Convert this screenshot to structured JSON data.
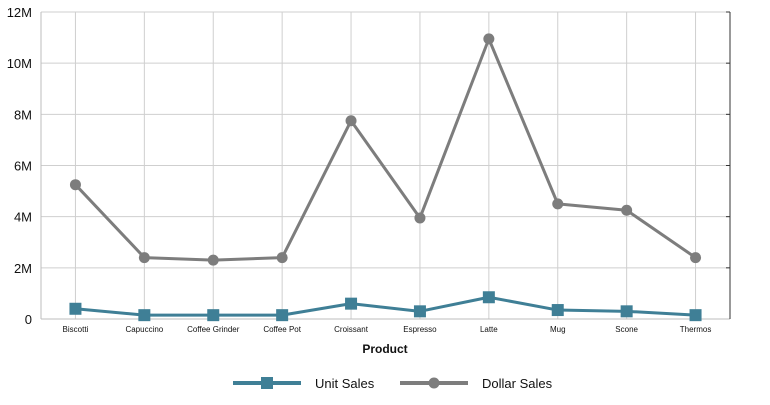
{
  "chart_data": {
    "type": "line",
    "title": "",
    "xlabel": "Product",
    "ylabel": "",
    "categories": [
      "Biscotti",
      "Capuccino",
      "Coffee Grinder",
      "Coffee Pot",
      "Croissant",
      "Espresso",
      "Latte",
      "Mug",
      "Scone",
      "Thermos"
    ],
    "ylim": [
      0,
      12000000
    ],
    "y_ticks": [
      0,
      2000000,
      4000000,
      6000000,
      8000000,
      10000000,
      12000000
    ],
    "y_tick_labels": [
      "0",
      "2M",
      "4M",
      "6M",
      "8M",
      "10M",
      "12M"
    ],
    "grid": true,
    "legend_position": "bottom",
    "series": [
      {
        "name": "Unit Sales",
        "color": "#3f7f96",
        "marker": "square",
        "values": [
          400000,
          150000,
          150000,
          150000,
          600000,
          300000,
          850000,
          350000,
          300000,
          150000
        ]
      },
      {
        "name": "Dollar Sales",
        "color": "#7d7d7d",
        "marker": "circle",
        "values": [
          5250000,
          2400000,
          2300000,
          2400000,
          7750000,
          3950000,
          10950000,
          4500000,
          4250000,
          2400000
        ]
      }
    ]
  }
}
